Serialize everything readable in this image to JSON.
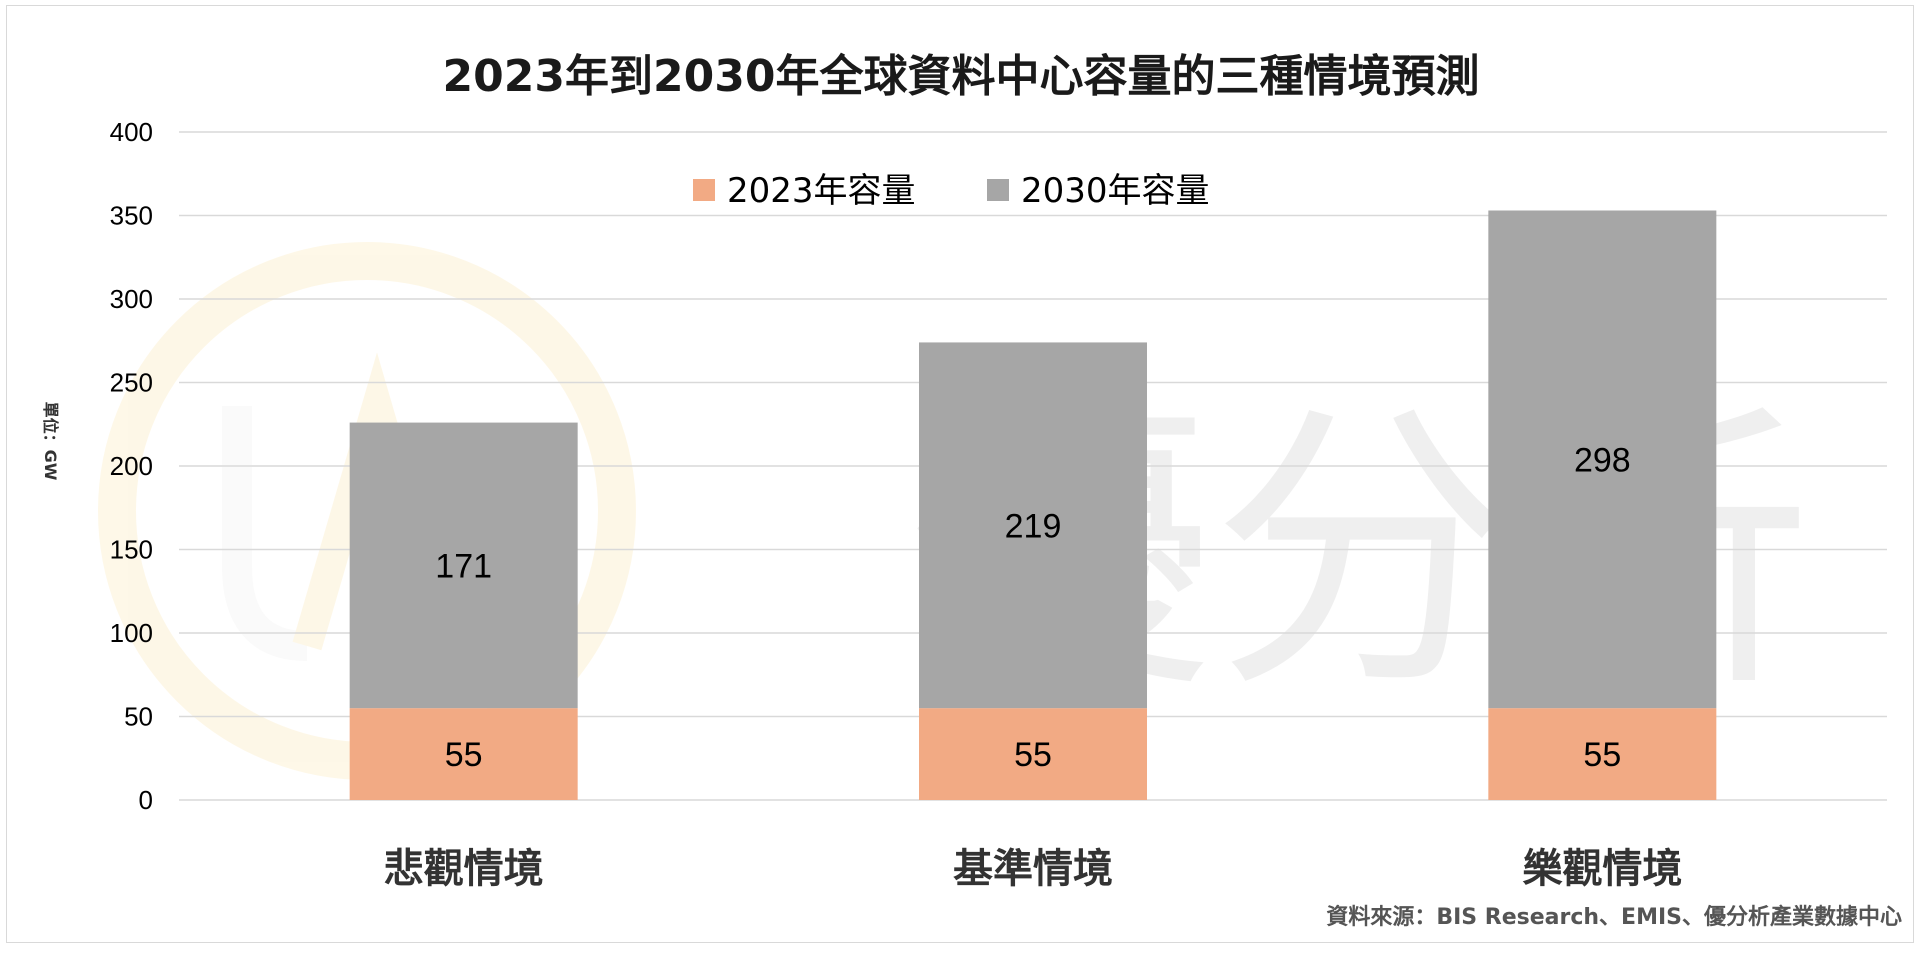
{
  "chart_data": {
    "type": "bar",
    "stacked": true,
    "title": "2023年到2030年全球資料中心容量的三種情境預測",
    "ylabel": "單位：GW",
    "xlabel": "",
    "categories": [
      "悲觀情境",
      "基準情境",
      "樂觀情境"
    ],
    "series": [
      {
        "name": "2023年容量",
        "values": [
          55,
          55,
          55
        ],
        "color": "#f2aa84"
      },
      {
        "name": "2030年容量",
        "values": [
          171,
          219,
          298
        ],
        "color": "#a6a6a6"
      }
    ],
    "ylim": [
      0,
      400
    ],
    "yticks": [
      0,
      50,
      100,
      150,
      200,
      250,
      300,
      350,
      400
    ],
    "grid": true,
    "legend_position": "top-center"
  },
  "source_note": "資料來源：BIS Research、EMIS、優分析產業數據中心",
  "watermark": {
    "text": "優分析",
    "logo_text": "UA",
    "logo_color": "#f5c242",
    "icon": "ua-logo-icon"
  },
  "colors": {
    "gridline": "#d9d9d9",
    "axis_text": "#000000",
    "title_text": "#1a1a1a"
  }
}
